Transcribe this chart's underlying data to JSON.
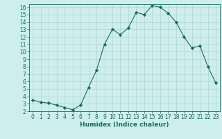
{
  "x": [
    0,
    1,
    2,
    3,
    4,
    5,
    6,
    7,
    8,
    9,
    10,
    11,
    12,
    13,
    14,
    15,
    16,
    17,
    18,
    19,
    20,
    21,
    22,
    23
  ],
  "y": [
    3.5,
    3.2,
    3.1,
    2.8,
    2.5,
    2.2,
    2.8,
    5.2,
    7.5,
    11.0,
    13.0,
    12.3,
    13.2,
    15.3,
    15.0,
    16.2,
    16.0,
    15.2,
    14.0,
    12.0,
    10.5,
    10.8,
    8.0,
    5.8
  ],
  "line_color": "#1a6b5a",
  "marker": "D",
  "marker_size": 2.2,
  "bg_color": "#cdeeed",
  "grid_color": "#a8cece",
  "xlabel": "Humidex (Indice chaleur)",
  "xlim": [
    -0.5,
    23.5
  ],
  "ylim": [
    2,
    16.4
  ],
  "yticks": [
    2,
    3,
    4,
    5,
    6,
    7,
    8,
    9,
    10,
    11,
    12,
    13,
    14,
    15,
    16
  ],
  "xticks": [
    0,
    1,
    2,
    3,
    4,
    5,
    6,
    7,
    8,
    9,
    10,
    11,
    12,
    13,
    14,
    15,
    16,
    17,
    18,
    19,
    20,
    21,
    22,
    23
  ],
  "tick_color": "#1a6b5a",
  "label_color": "#1a6b5a",
  "tick_fontsize": 5.5,
  "xlabel_fontsize": 6.5
}
